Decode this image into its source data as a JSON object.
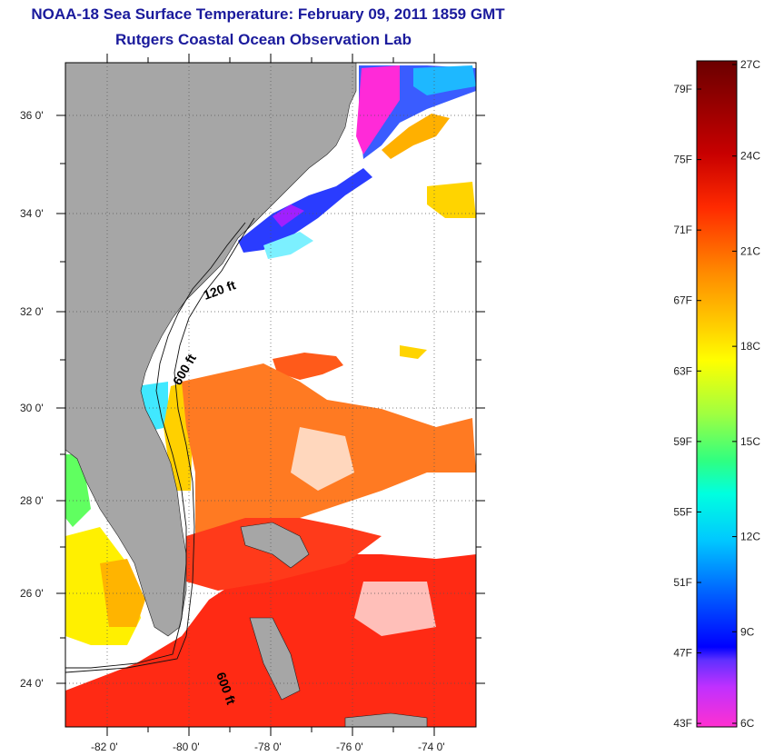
{
  "title_line1": "NOAA-18 Sea Surface Temperature:  February 09, 2011 1859 GMT",
  "title_line2": "Rutgers Coastal Ocean Observation Lab",
  "lat_labels": [
    "36 0'",
    "34 0'",
    "32 0'",
    "30 0'",
    "28 0'",
    "26 0'",
    "24 0'"
  ],
  "lon_labels": [
    "-82 0'",
    "-80 0'",
    "-78 0'",
    "-76 0'",
    "-74 0'"
  ],
  "contour_labels": {
    "shelf_120": "120 ft",
    "shelf_600_north": "600 ft",
    "shelf_600_south": "600 ft"
  },
  "colorbar": {
    "fahrenheit": [
      "79F",
      "75F",
      "71F",
      "67F",
      "63F",
      "59F",
      "55F",
      "51F",
      "47F",
      "43F"
    ],
    "celsius": [
      "27C",
      "24C",
      "21C",
      "18C",
      "15C",
      "12C",
      "9C",
      "6C"
    ],
    "colors": {
      "top": "#7a0000",
      "red": "#ff1a00",
      "orange": "#ff8c00",
      "yellow": "#ffff00",
      "green": "#40ff40",
      "cyan": "#00ffff",
      "blue": "#0040ff",
      "violet": "#a040ff",
      "magenta": "#ff00ff"
    }
  },
  "colors": {
    "land": "#a6a6a6",
    "no_data": "#ffffff",
    "title_text": "#1a1a9c"
  }
}
